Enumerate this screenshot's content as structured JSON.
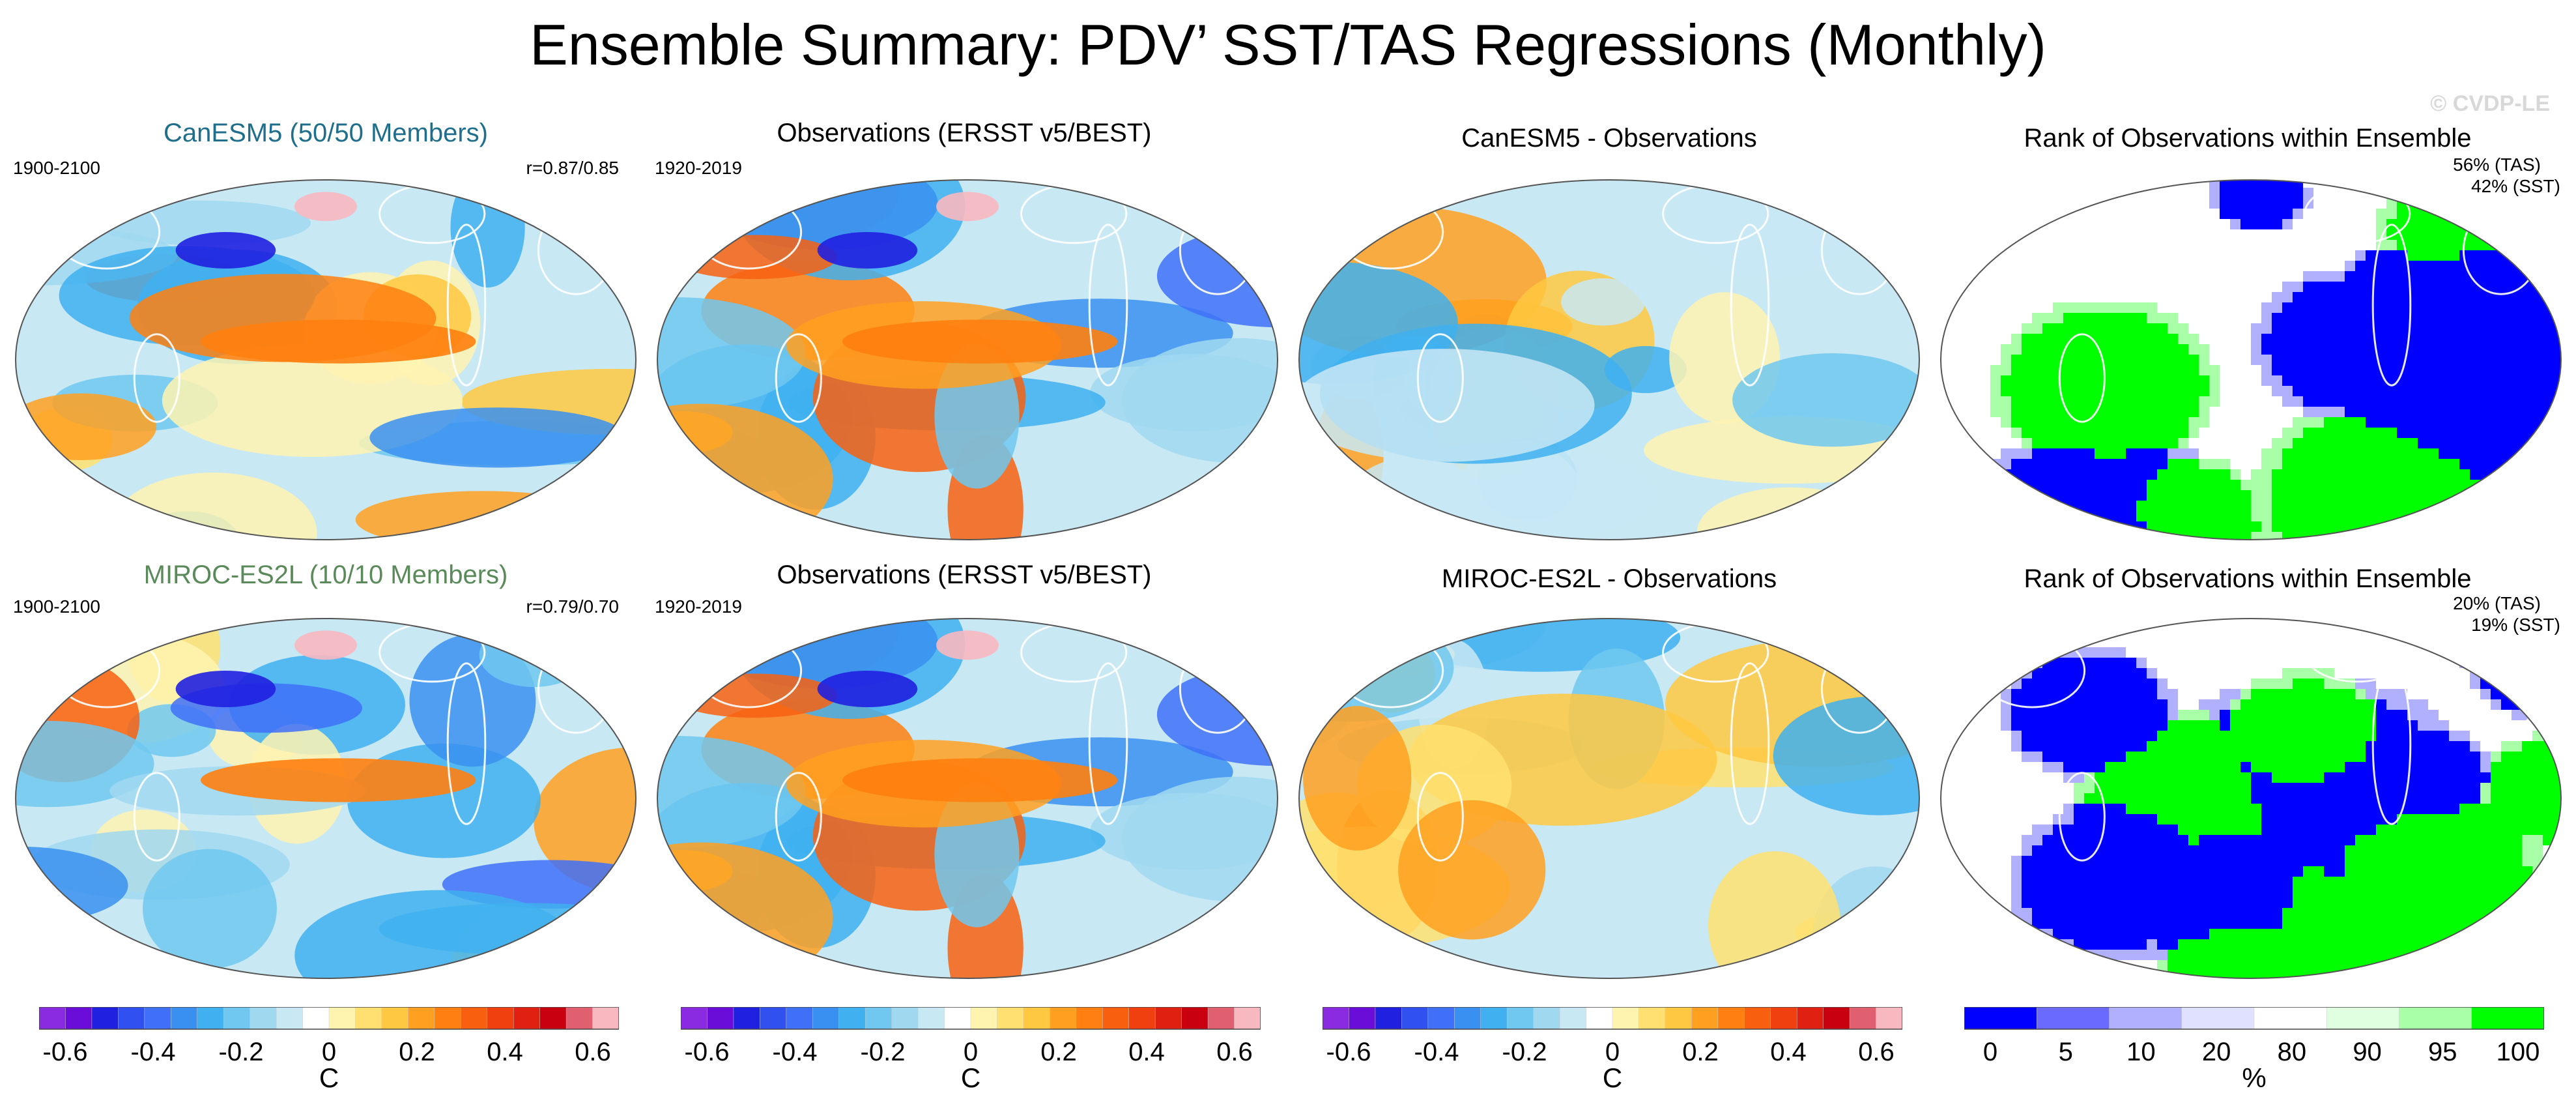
{
  "title": "Ensemble Summary: PDV’ SST/TAS Regressions (Monthly)",
  "watermark": "© CVDP-LE",
  "rows": [
    {
      "model_title": "CanESM5 (50/50 Members)",
      "model_title_color": "#1f6e8c",
      "model_period": "1900-2100",
      "correlation": "r=0.87/0.85",
      "obs_title": "Observations (ERSST v5/BEST)",
      "obs_period": "1920-2019",
      "diff_title": "CanESM5 - Observations",
      "rank_title": "Rank of Observations within Ensemble",
      "rank_tas": "56% (TAS)",
      "rank_sst": "42% (SST)"
    },
    {
      "model_title": "MIROC-ES2L (10/10 Members)",
      "model_title_color": "#5a8a5a",
      "model_period": "1900-2100",
      "correlation": "r=0.79/0.70",
      "obs_title": "Observations (ERSST v5/BEST)",
      "obs_period": "1920-2019",
      "diff_title": "MIROC-ES2L - Observations",
      "rank_title": "Rank of Observations within Ensemble",
      "rank_tas": "20% (TAS)",
      "rank_sst": "19% (SST)"
    }
  ],
  "colorbars": [
    {
      "units": "C",
      "ticks": [
        "-0.6",
        "-0.4",
        "-0.2",
        "0",
        "0.2",
        "0.4",
        "0.6"
      ]
    },
    {
      "units": "C",
      "ticks": [
        "-0.6",
        "-0.4",
        "-0.2",
        "0",
        "0.2",
        "0.4",
        "0.6"
      ]
    },
    {
      "units": "C",
      "ticks": [
        "-0.6",
        "-0.4",
        "-0.2",
        "0",
        "0.2",
        "0.4",
        "0.6"
      ]
    },
    {
      "units": "%",
      "ticks": [
        "0",
        "5",
        "10",
        "20",
        "80",
        "90",
        "95",
        "100"
      ]
    }
  ],
  "palettes": {
    "anomaly": [
      "#8a2be2",
      "#6a0dd8",
      "#2020e0",
      "#3050f0",
      "#4070f8",
      "#3a90f0",
      "#40b0f0",
      "#70c8f0",
      "#a0d8f0",
      "#c8e8f4",
      "#ffffff",
      "#fff3b0",
      "#ffe070",
      "#ffc840",
      "#ffa020",
      "#ff8010",
      "#f86010",
      "#f04010",
      "#e02010",
      "#c80010",
      "#e06070",
      "#f8b8c0"
    ],
    "rank": [
      "#0000ff",
      "#6a6aff",
      "#b0b0ff",
      "#e0e0ff",
      "#ffffff",
      "#e0ffe0",
      "#a8ffa8",
      "#00ff00"
    ]
  }
}
